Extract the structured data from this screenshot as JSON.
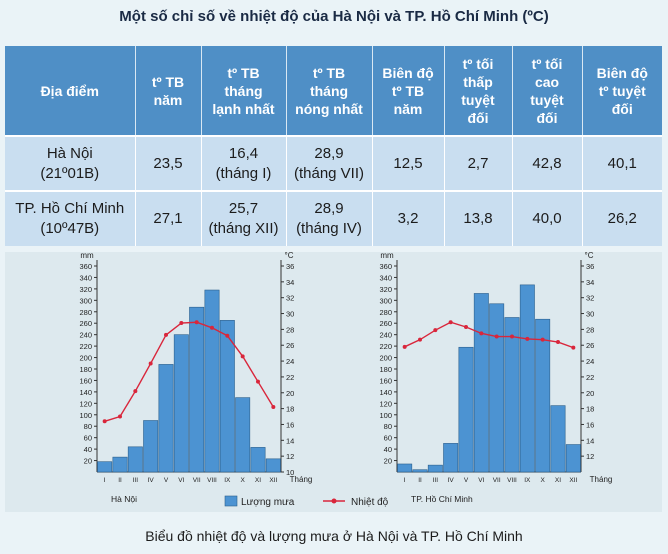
{
  "title": "Một số chỉ số về nhiệt độ của Hà Nội và TP. Hồ Chí Minh (ºC)",
  "table": {
    "headers": [
      {
        "lines": [
          "Địa điểm"
        ]
      },
      {
        "lines": [
          "tº TB",
          "năm"
        ]
      },
      {
        "lines": [
          "tº TB",
          "tháng",
          "lạnh nhất"
        ]
      },
      {
        "lines": [
          "tº TB",
          "tháng",
          "nóng nhất"
        ]
      },
      {
        "lines": [
          "Biên độ",
          "tº TB",
          "năm"
        ]
      },
      {
        "lines": [
          "tº tối",
          "thấp",
          "tuyệt",
          "đối"
        ]
      },
      {
        "lines": [
          "tº tối",
          "cao",
          "tuyệt",
          "đối"
        ]
      },
      {
        "lines": [
          "Biên độ",
          "tº tuyệt",
          "đối"
        ]
      }
    ],
    "rows": [
      [
        {
          "lines": [
            "Hà Nội",
            "(21º01B)"
          ]
        },
        {
          "lines": [
            "23,5"
          ]
        },
        {
          "lines": [
            "16,4",
            "(tháng I)"
          ]
        },
        {
          "lines": [
            "28,9",
            "(tháng VII)"
          ]
        },
        {
          "lines": [
            "12,5"
          ]
        },
        {
          "lines": [
            "2,7"
          ]
        },
        {
          "lines": [
            "42,8"
          ]
        },
        {
          "lines": [
            "40,1"
          ]
        }
      ],
      [
        {
          "lines": [
            "TP. Hồ Chí Minh",
            "(10º47B)"
          ]
        },
        {
          "lines": [
            "27,1"
          ]
        },
        {
          "lines": [
            "25,7",
            "(tháng XII)"
          ]
        },
        {
          "lines": [
            "28,9",
            "(tháng IV)"
          ]
        },
        {
          "lines": [
            "3,2"
          ]
        },
        {
          "lines": [
            "13,8"
          ]
        },
        {
          "lines": [
            "40,0"
          ]
        },
        {
          "lines": [
            "26,2"
          ]
        }
      ]
    ]
  },
  "chart_data": [
    {
      "type": "bar",
      "name": "Hà Nội",
      "categories": [
        "I",
        "II",
        "III",
        "IV",
        "V",
        "VI",
        "VII",
        "VIII",
        "IX",
        "X",
        "XI",
        "XII"
      ],
      "rain_mm": [
        18,
        26,
        44,
        90,
        188,
        240,
        288,
        318,
        265,
        130,
        43,
        23
      ],
      "temp_c": [
        16.4,
        17.0,
        20.2,
        23.7,
        27.3,
        28.8,
        28.9,
        28.2,
        27.2,
        24.6,
        21.4,
        18.2
      ],
      "y_left": {
        "label": "mm",
        "ticks": [
          20,
          40,
          60,
          80,
          100,
          120,
          140,
          160,
          180,
          200,
          220,
          240,
          260,
          280,
          300,
          320,
          340,
          360
        ]
      },
      "y_right": {
        "label": "°C",
        "ticks": [
          10,
          12,
          14,
          16,
          18,
          20,
          22,
          24,
          26,
          28,
          30,
          32,
          34,
          36
        ]
      },
      "x_unit": "Tháng",
      "rain_color": "#4c93d2",
      "temp_color": "#d9263b"
    },
    {
      "type": "bar",
      "name": "TP. Hồ Chí Minh",
      "categories": [
        "I",
        "II",
        "III",
        "IV",
        "V",
        "VI",
        "VII",
        "VIII",
        "IX",
        "X",
        "XI",
        "XII"
      ],
      "rain_mm": [
        14,
        4,
        12,
        50,
        218,
        312,
        294,
        270,
        327,
        267,
        116,
        48
      ],
      "temp_c": [
        25.8,
        26.7,
        27.9,
        28.9,
        28.3,
        27.5,
        27.1,
        27.1,
        26.8,
        26.7,
        26.4,
        25.7
      ],
      "y_left": {
        "label": "mm",
        "ticks": [
          20,
          40,
          60,
          80,
          100,
          120,
          140,
          160,
          180,
          200,
          220,
          240,
          260,
          280,
          300,
          320,
          340,
          360
        ]
      },
      "y_right": {
        "label": "°C",
        "ticks": [
          12,
          14,
          16,
          18,
          20,
          22,
          24,
          26,
          28,
          30,
          32,
          34,
          36
        ]
      },
      "x_unit": "Tháng",
      "rain_color": "#4c93d2",
      "temp_color": "#d9263b"
    }
  ],
  "legend": {
    "rain": "Lượng mưa",
    "temp": "Nhiệt độ"
  },
  "caption": "Biểu đồ nhiệt độ và lượng mưa ở Hà Nội và TP. Hồ Chí Minh"
}
